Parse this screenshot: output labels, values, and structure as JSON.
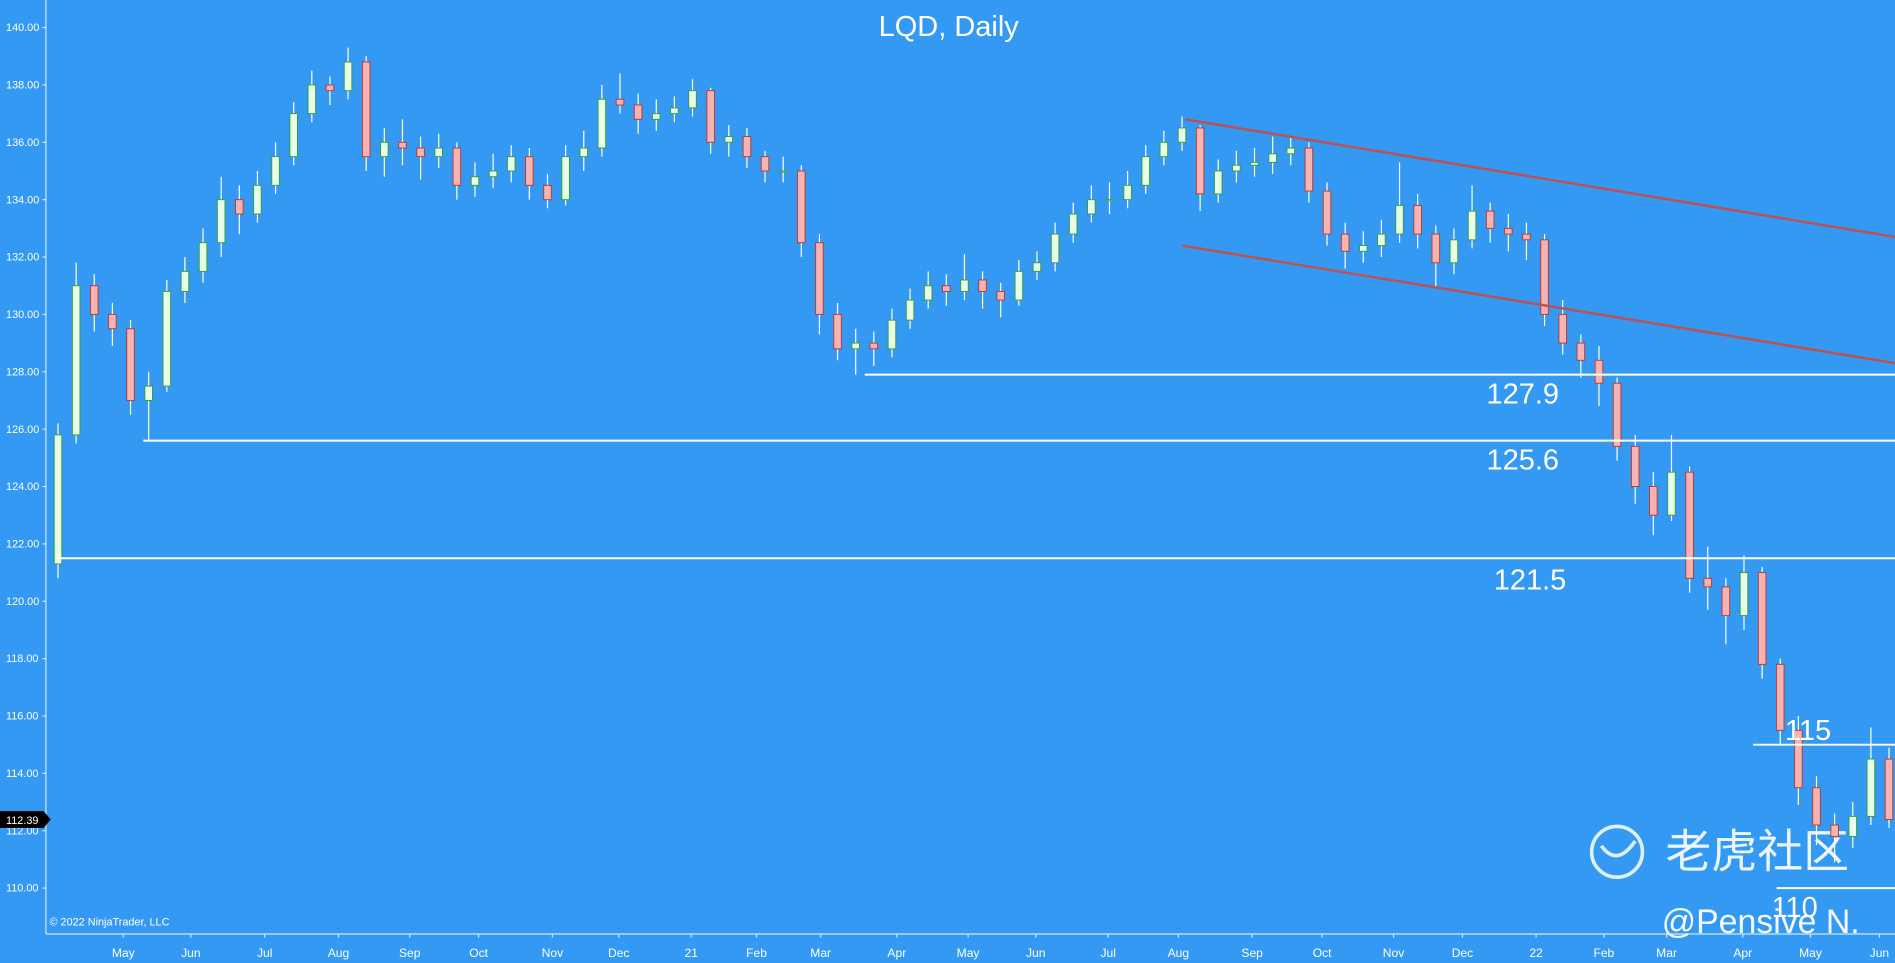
{
  "chart_data": {
    "type": "candlestick",
    "title": "LQD, Daily",
    "copyright": "© 2022 NinjaTrader, LLC",
    "watermark": "老虎社区",
    "signature": "@Pensive N.",
    "background": "#3399f3",
    "up_color": "#3a9d3a",
    "down_color": "#c0392b",
    "xlim": [
      -0.667,
      101.33
    ],
    "ylim": [
      108.4,
      140.75
    ],
    "yticks": [
      {
        "value": 110,
        "label": "110.00"
      },
      {
        "value": 112,
        "label": "112.00"
      },
      {
        "value": 114,
        "label": "114.00"
      },
      {
        "value": 116,
        "label": "116.00"
      },
      {
        "value": 118,
        "label": "118.00"
      },
      {
        "value": 120,
        "label": "120.00"
      },
      {
        "value": 122,
        "label": "122.00"
      },
      {
        "value": 124,
        "label": "124.00"
      },
      {
        "value": 126,
        "label": "126.00"
      },
      {
        "value": 128,
        "label": "128.00"
      },
      {
        "value": 130,
        "label": "130.00"
      },
      {
        "value": 132,
        "label": "132.00"
      },
      {
        "value": 134,
        "label": "134.00"
      },
      {
        "value": 136,
        "label": "136.00"
      },
      {
        "value": 138,
        "label": "138.00"
      },
      {
        "value": 140,
        "label": "140.00"
      }
    ],
    "xticks": [
      {
        "value": 3.6,
        "label": "May"
      },
      {
        "value": 7.33,
        "label": "Jun"
      },
      {
        "value": 11.4,
        "label": "Jul"
      },
      {
        "value": 15.47,
        "label": "Aug"
      },
      {
        "value": 19.4,
        "label": "Sep"
      },
      {
        "value": 23.2,
        "label": "Oct"
      },
      {
        "value": 27.27,
        "label": "Nov"
      },
      {
        "value": 30.93,
        "label": "Dec"
      },
      {
        "value": 34.93,
        "label": "21"
      },
      {
        "value": 38.53,
        "label": "Feb"
      },
      {
        "value": 42.07,
        "label": "Mar"
      },
      {
        "value": 46.27,
        "label": "Apr"
      },
      {
        "value": 50.2,
        "label": "May"
      },
      {
        "value": 53.93,
        "label": "Jun"
      },
      {
        "value": 57.93,
        "label": "Jul"
      },
      {
        "value": 61.8,
        "label": "Aug"
      },
      {
        "value": 65.87,
        "label": "Sep"
      },
      {
        "value": 69.73,
        "label": "Oct"
      },
      {
        "value": 73.67,
        "label": "Nov"
      },
      {
        "value": 77.47,
        "label": "Dec"
      },
      {
        "value": 81.53,
        "label": "22"
      },
      {
        "value": 85.27,
        "label": "Feb"
      },
      {
        "value": 88.73,
        "label": "Mar"
      },
      {
        "value": 92.93,
        "label": "Apr"
      },
      {
        "value": 96.67,
        "label": "May"
      },
      {
        "value": 100.47,
        "label": "Jun"
      }
    ],
    "x": [
      0,
      1,
      2,
      3,
      4,
      5,
      6,
      7,
      8,
      9,
      10,
      11,
      12,
      13,
      14,
      15,
      16,
      17,
      18,
      19,
      20,
      21,
      22,
      23,
      24,
      25,
      26,
      27,
      28,
      29,
      30,
      31,
      32,
      33,
      34,
      35,
      36,
      37,
      38,
      39,
      40,
      41,
      42,
      43,
      44,
      45,
      46,
      47,
      48,
      49,
      50,
      51,
      52,
      53,
      54,
      55,
      56,
      57,
      58,
      59,
      60,
      61,
      62,
      63,
      64,
      65,
      66,
      67,
      68,
      69,
      70,
      71,
      72,
      73,
      74,
      75,
      76,
      77,
      78,
      79,
      80,
      81,
      82,
      83,
      84,
      85,
      86,
      87,
      88,
      89,
      90,
      91,
      92,
      93,
      94,
      95,
      96,
      97,
      98,
      99,
      100,
      101
    ],
    "open": [
      121.3,
      125.8,
      131.0,
      130.0,
      129.5,
      127.0,
      127.5,
      130.8,
      131.5,
      132.5,
      134.0,
      133.5,
      134.5,
      135.5,
      137.0,
      138.0,
      137.8,
      138.8,
      135.5,
      136.0,
      135.8,
      135.5,
      135.8,
      134.5,
      134.8,
      135.0,
      135.5,
      134.5,
      134.0,
      135.5,
      135.8,
      137.5,
      137.3,
      136.8,
      137.0,
      137.2,
      137.8,
      136.0,
      136.2,
      135.5,
      135.0,
      135.0,
      132.5,
      130.0,
      128.8,
      129.0,
      128.8,
      129.8,
      130.5,
      131.0,
      130.8,
      131.2,
      130.8,
      130.5,
      131.5,
      131.8,
      132.8,
      133.5,
      134.0,
      134.0,
      134.5,
      135.5,
      136.0,
      136.5,
      134.2,
      135.0,
      135.2,
      135.3,
      135.6,
      135.8,
      134.3,
      132.8,
      132.2,
      132.4,
      132.8,
      133.8,
      132.8,
      131.8,
      132.6,
      133.6,
      133.0,
      132.8,
      132.6,
      130.0,
      129.0,
      128.4,
      127.6,
      125.4,
      124.0,
      123.0,
      124.5,
      120.8,
      120.5,
      119.5,
      121.0,
      117.8,
      115.5,
      113.5,
      112.2,
      111.8,
      112.5,
      114.5
    ],
    "high": [
      126.2,
      131.8,
      131.4,
      130.4,
      129.8,
      128.0,
      131.2,
      132.0,
      133.0,
      134.8,
      134.5,
      135.0,
      136.0,
      137.4,
      138.5,
      138.3,
      139.3,
      139.0,
      136.5,
      136.8,
      136.2,
      136.3,
      136.0,
      135.3,
      135.6,
      135.9,
      135.8,
      134.9,
      135.9,
      136.4,
      138.0,
      138.4,
      137.7,
      137.5,
      137.6,
      138.2,
      137.9,
      136.6,
      136.5,
      135.7,
      135.5,
      135.2,
      132.8,
      130.4,
      129.5,
      129.4,
      130.2,
      130.9,
      131.5,
      131.4,
      132.1,
      131.5,
      131.1,
      131.9,
      132.2,
      133.2,
      133.9,
      134.5,
      134.6,
      135.0,
      135.9,
      136.4,
      136.9,
      136.6,
      135.4,
      135.7,
      135.8,
      136.2,
      136.2,
      136.0,
      134.6,
      133.2,
      132.9,
      133.3,
      135.3,
      134.2,
      133.1,
      133.0,
      134.5,
      133.9,
      133.5,
      133.2,
      132.8,
      130.5,
      129.3,
      128.9,
      127.8,
      125.8,
      124.5,
      125.8,
      124.7,
      121.9,
      120.8,
      121.6,
      121.2,
      118.0,
      116.0,
      113.9,
      112.6,
      113.0,
      115.6,
      114.9
    ],
    "low": [
      120.8,
      125.5,
      129.4,
      128.9,
      126.5,
      125.6,
      127.3,
      130.4,
      131.1,
      132.0,
      132.8,
      133.2,
      134.2,
      135.2,
      136.7,
      137.3,
      137.5,
      135.0,
      134.8,
      135.2,
      134.7,
      135.1,
      134.0,
      134.1,
      134.4,
      134.6,
      134.0,
      133.7,
      133.8,
      135.0,
      135.5,
      137.0,
      136.3,
      136.4,
      136.7,
      136.9,
      135.6,
      135.5,
      135.1,
      134.6,
      134.6,
      132.0,
      129.3,
      128.4,
      127.9,
      128.2,
      128.5,
      129.5,
      130.2,
      130.3,
      130.5,
      130.2,
      129.9,
      130.3,
      131.2,
      131.5,
      132.5,
      133.2,
      133.5,
      133.7,
      134.2,
      135.2,
      135.7,
      133.6,
      133.9,
      134.6,
      134.8,
      134.9,
      135.2,
      133.9,
      132.4,
      131.6,
      131.8,
      132.0,
      132.5,
      132.3,
      130.9,
      131.4,
      132.3,
      132.5,
      132.2,
      131.9,
      129.6,
      128.6,
      127.8,
      126.8,
      124.9,
      123.4,
      122.3,
      122.8,
      120.3,
      119.7,
      118.5,
      119.0,
      117.3,
      115.0,
      112.9,
      111.5,
      110.9,
      111.4,
      112.2,
      112.1
    ],
    "close": [
      125.8,
      131.0,
      130.0,
      129.5,
      127.0,
      127.5,
      130.8,
      131.5,
      132.5,
      134.0,
      133.5,
      134.5,
      135.5,
      137.0,
      138.0,
      137.8,
      138.8,
      135.5,
      136.0,
      135.8,
      135.5,
      135.8,
      134.5,
      134.8,
      135.0,
      135.5,
      134.5,
      134.0,
      135.5,
      135.8,
      137.5,
      137.3,
      136.8,
      137.0,
      137.2,
      137.8,
      136.0,
      136.2,
      135.5,
      135.0,
      135.0,
      132.5,
      130.0,
      128.8,
      129.0,
      128.8,
      129.8,
      130.5,
      131.0,
      130.8,
      131.2,
      130.8,
      130.5,
      131.5,
      131.8,
      132.8,
      133.5,
      134.0,
      134.0,
      134.5,
      135.5,
      136.0,
      136.5,
      134.2,
      135.0,
      135.2,
      135.3,
      135.6,
      135.8,
      134.3,
      132.8,
      132.2,
      132.4,
      132.8,
      133.8,
      132.8,
      131.8,
      132.6,
      133.6,
      133.0,
      132.8,
      132.6,
      130.0,
      129.0,
      128.4,
      127.6,
      125.4,
      124.0,
      123.0,
      124.5,
      120.8,
      120.5,
      119.5,
      121.0,
      117.8,
      115.5,
      113.5,
      112.2,
      111.8,
      112.5,
      114.5,
      112.39
    ],
    "levels": [
      {
        "label": "127.9",
        "value": 127.9,
        "from": 44.5,
        "color": "#ffffff"
      },
      {
        "label": "125.6",
        "value": 125.6,
        "from": 4.7,
        "color": "#ffffff"
      },
      {
        "label": "121.5",
        "value": 121.5,
        "from": 0,
        "color": "#ffffff"
      },
      {
        "label": "115",
        "value": 115,
        "from": 93.5,
        "color": "#ffffff"
      },
      {
        "label": "110",
        "value": 110,
        "from": 94.8,
        "color": "#ffffff"
      }
    ],
    "trendlines": [
      {
        "color": "#c0504d",
        "x": [
          62.2,
          101.33
        ],
        "y": [
          136.8,
          132.7
        ]
      },
      {
        "color": "#c0504d",
        "x": [
          62.0,
          101.33
        ],
        "y": [
          132.4,
          128.3
        ]
      }
    ]
  }
}
